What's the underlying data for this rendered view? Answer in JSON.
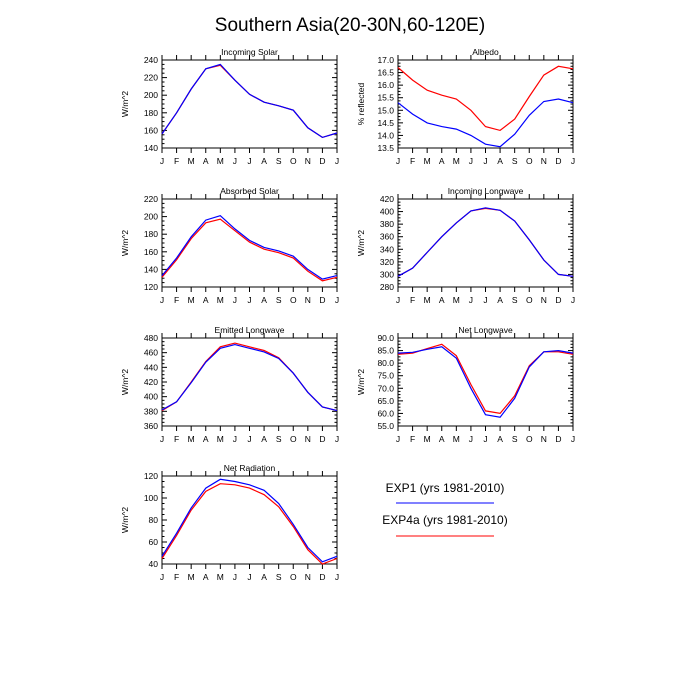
{
  "title": "Southern Asia(20-30N,60-120E)",
  "months": [
    "J",
    "F",
    "M",
    "A",
    "M",
    "J",
    "J",
    "A",
    "S",
    "O",
    "N",
    "D",
    "J"
  ],
  "colors": {
    "exp1": "#0000ff",
    "exp4a": "#ff0000"
  },
  "legend": [
    {
      "label": "EXP1 (yrs 1981-2010)",
      "color": "#0000ff"
    },
    {
      "label": "EXP4a (yrs 1981-2010)",
      "color": "#ff0000"
    }
  ],
  "chart_data": [
    {
      "type": "line",
      "title": "Incoming Solar",
      "ylabel": "W/m^2",
      "ylim": [
        140,
        240
      ],
      "yticks": [
        "140",
        "160",
        "180",
        "200",
        "220",
        "240"
      ],
      "series": [
        {
          "name": "EXP1 (yrs 1981-2010)",
          "values": [
            156,
            180,
            207,
            230,
            235,
            217,
            201,
            192,
            188,
            183,
            163,
            152,
            157
          ]
        },
        {
          "name": "EXP4a (yrs 1981-2010)",
          "values": [
            156,
            180,
            207,
            230,
            234,
            217,
            201,
            192,
            188,
            183,
            163,
            152,
            157
          ]
        }
      ]
    },
    {
      "type": "line",
      "title": "Albedo",
      "ylabel": "% reflected",
      "ylim": [
        13.5,
        17.0
      ],
      "yticks": [
        "13.5",
        "14.0",
        "14.5",
        "15.0",
        "15.5",
        "16.0",
        "16.5",
        "17.0"
      ],
      "series": [
        {
          "name": "EXP1 (yrs 1981-2010)",
          "values": [
            15.3,
            14.85,
            14.5,
            14.35,
            14.25,
            14.0,
            13.65,
            13.55,
            14.05,
            14.8,
            15.35,
            15.45,
            15.3
          ]
        },
        {
          "name": "EXP4a (yrs 1981-2010)",
          "values": [
            16.7,
            16.2,
            15.8,
            15.6,
            15.45,
            15.0,
            14.35,
            14.2,
            14.65,
            15.55,
            16.4,
            16.75,
            16.65
          ]
        }
      ]
    },
    {
      "type": "line",
      "title": "Absorbed Solar",
      "ylabel": "W/m^2",
      "ylim": [
        120,
        220
      ],
      "yticks": [
        "120",
        "140",
        "160",
        "180",
        "200",
        "220"
      ],
      "series": [
        {
          "name": "EXP1 (yrs 1981-2010)",
          "values": [
            133,
            153,
            177,
            196,
            201,
            186,
            173,
            165,
            161,
            155,
            140,
            129,
            133
          ]
        },
        {
          "name": "EXP4a (yrs 1981-2010)",
          "values": [
            131,
            151,
            175,
            193,
            197,
            184,
            171,
            163,
            159,
            153,
            138,
            127,
            131
          ]
        }
      ]
    },
    {
      "type": "line",
      "title": "Incoming Longwave",
      "ylabel": "W/m^2",
      "ylim": [
        280,
        420
      ],
      "yticks": [
        "280",
        "300",
        "320",
        "340",
        "360",
        "380",
        "400",
        "420"
      ],
      "series": [
        {
          "name": "EXP1 (yrs 1981-2010)",
          "values": [
            297,
            310,
            335,
            360,
            382,
            401,
            406,
            402,
            385,
            355,
            323,
            300,
            297
          ]
        },
        {
          "name": "EXP4a (yrs 1981-2010)",
          "values": [
            297,
            310,
            335,
            360,
            382,
            401,
            405,
            402,
            385,
            355,
            323,
            300,
            297
          ]
        }
      ]
    },
    {
      "type": "line",
      "title": "Emitted Longwave",
      "ylabel": "W/m^2",
      "ylim": [
        360,
        480
      ],
      "yticks": [
        "360",
        "380",
        "400",
        "420",
        "440",
        "460",
        "480"
      ],
      "series": [
        {
          "name": "EXP1 (yrs 1981-2010)",
          "values": [
            382,
            393,
            419,
            447,
            466,
            471,
            466,
            461,
            452,
            432,
            406,
            386,
            381
          ]
        },
        {
          "name": "EXP4a (yrs 1981-2010)",
          "values": [
            381,
            393,
            420,
            448,
            468,
            473,
            468,
            463,
            453,
            432,
            406,
            386,
            381
          ]
        }
      ]
    },
    {
      "type": "line",
      "title": "Net Longwave",
      "ylabel": "W/m^2",
      "ylim": [
        55.0,
        90.0
      ],
      "yticks": [
        "55.0",
        "60.0",
        "65.0",
        "70.0",
        "75.0",
        "80.0",
        "85.0",
        "90.0"
      ],
      "series": [
        {
          "name": "EXP1 (yrs 1981-2010)",
          "values": [
            84.0,
            84.3,
            85.5,
            86.5,
            82.0,
            70.0,
            59.5,
            58.5,
            66.0,
            78.5,
            84.5,
            85.0,
            84.0
          ]
        },
        {
          "name": "EXP4a (yrs 1981-2010)",
          "values": [
            83.5,
            84.0,
            85.8,
            87.5,
            83.0,
            71.5,
            61.0,
            60.0,
            67.0,
            79.0,
            84.5,
            84.5,
            83.5
          ]
        }
      ]
    },
    {
      "type": "line",
      "title": "Net Radiation",
      "ylabel": "W/m^2",
      "ylim": [
        40,
        120
      ],
      "yticks": [
        "40",
        "60",
        "80",
        "100",
        "120"
      ],
      "series": [
        {
          "name": "EXP1 (yrs 1981-2010)",
          "values": [
            47,
            68,
            91,
            109,
            117,
            115,
            112,
            107,
            95,
            76,
            55,
            42,
            47
          ]
        },
        {
          "name": "EXP4a (yrs 1981-2010)",
          "values": [
            45,
            66,
            89,
            106,
            113,
            112,
            109,
            103,
            92,
            74,
            53,
            40,
            45
          ]
        }
      ]
    }
  ]
}
